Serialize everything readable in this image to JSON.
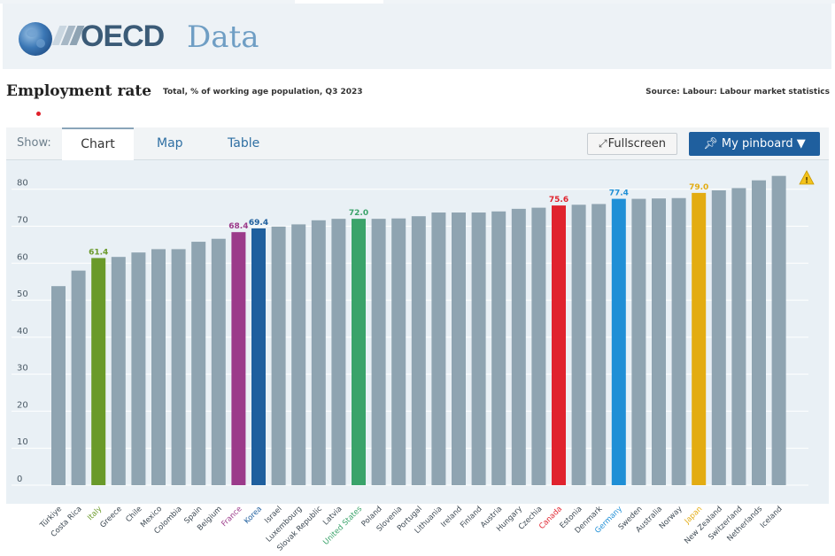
{
  "header": {
    "logo_text": "OECD",
    "site_name": "Data"
  },
  "title": {
    "main": "Employment rate",
    "subtitle": "Total, % of working age population, Q3 2023",
    "source": "Source: Labour: Labour market statistics"
  },
  "tabs": {
    "show_label": "Show:",
    "chart": "Chart",
    "map": "Map",
    "table": "Table"
  },
  "buttons": {
    "fullscreen": "Fullscreen",
    "pinboard": "My pinboard ▼"
  },
  "colors": {
    "default_bar": "#8fa4b1",
    "italy": "#6a9a2a",
    "france": "#9b3a8a",
    "korea": "#1f5f9e",
    "united_states": "#3aa36a",
    "canada": "#e0232e",
    "germany": "#1f8fd6",
    "japan": "#e3ac12"
  },
  "chart_data": {
    "type": "bar",
    "title": "Employment rate",
    "ylim": [
      0,
      84
    ],
    "yticks": [
      "0",
      "10",
      "20",
      "30",
      "40",
      "50",
      "60",
      "70",
      "80"
    ],
    "categories": [
      "Türkiye",
      "Costa Rica",
      "Italy",
      "Greece",
      "Chile",
      "Mexico",
      "Colombia",
      "Spain",
      "Belgium",
      "France",
      "Korea",
      "Israel",
      "Luxembourg",
      "Slovak Republic",
      "Latvia",
      "United States",
      "Poland",
      "Slovenia",
      "Portugal",
      "Lithuania",
      "Ireland",
      "Finland",
      "Austria",
      "Hungary",
      "Czechia",
      "Canada",
      "Estonia",
      "Denmark",
      "Germany",
      "Sweden",
      "Australia",
      "Norway",
      "Japan",
      "New Zealand",
      "Switzerland",
      "Netherlands",
      "Iceland"
    ],
    "values": [
      53.8,
      58.0,
      61.4,
      61.7,
      62.9,
      63.8,
      63.8,
      65.8,
      66.6,
      68.4,
      69.4,
      69.9,
      70.5,
      71.6,
      72.0,
      72.0,
      72.0,
      72.1,
      72.7,
      73.7,
      73.7,
      73.7,
      74.0,
      74.7,
      75.0,
      75.6,
      75.8,
      76.0,
      77.4,
      77.4,
      77.5,
      77.6,
      79.0,
      79.7,
      80.3,
      82.4,
      83.6
    ],
    "highlights": [
      {
        "index": 2,
        "label": "61.4",
        "color_key": "italy"
      },
      {
        "index": 9,
        "label": "68.4",
        "color_key": "france"
      },
      {
        "index": 10,
        "label": "69.4",
        "color_key": "korea"
      },
      {
        "index": 15,
        "label": "72.0",
        "color_key": "united_states"
      },
      {
        "index": 25,
        "label": "75.6",
        "color_key": "canada"
      },
      {
        "index": 28,
        "label": "77.4",
        "color_key": "germany"
      },
      {
        "index": 32,
        "label": "79.0",
        "color_key": "japan"
      }
    ],
    "warning_icon": "warning-icon",
    "grid": true,
    "legend": "none"
  }
}
